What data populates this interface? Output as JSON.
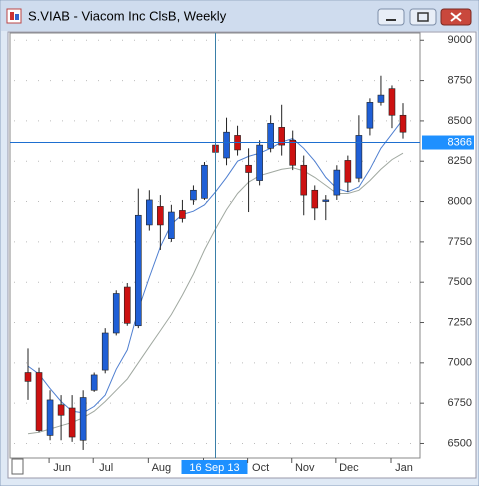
{
  "chart_data": {
    "type": "candlestick",
    "title": "S.VIAB - Viacom Inc ClsB, Weekly",
    "categories": [
      null,
      null,
      null,
      "Jun",
      null,
      null,
      null,
      "Jul",
      null,
      null,
      null,
      null,
      "Aug",
      null,
      null,
      null,
      null,
      "16 Sep 13",
      null,
      null,
      null,
      "Oct",
      null,
      null,
      null,
      "Nov",
      null,
      null,
      null,
      "Dec",
      null,
      null,
      null,
      null,
      "Jan"
    ],
    "open": [
      6940,
      6940,
      6550,
      6740,
      6720,
      6520,
      6830,
      6955,
      7185,
      7470,
      7230,
      7855,
      7970,
      7770,
      7945,
      8010,
      8020,
      8350,
      8270,
      8410,
      8225,
      8130,
      8330,
      8460,
      8380,
      8225,
      8070,
      8000,
      8040,
      8255,
      8145,
      8455,
      8615,
      8700,
      8535
    ],
    "high": [
      7090,
      6970,
      6830,
      6800,
      6800,
      6830,
      6940,
      7215,
      7450,
      7495,
      8080,
      8070,
      8040,
      7980,
      8010,
      8100,
      8245,
      8390,
      8520,
      8470,
      8330,
      8380,
      8535,
      8600,
      8440,
      8285,
      8100,
      8040,
      8225,
      8285,
      8535,
      8640,
      8780,
      8720,
      8610
    ],
    "low": [
      6770,
      6570,
      6520,
      6520,
      6510,
      6460,
      6820,
      6935,
      7170,
      7230,
      7215,
      7820,
      7700,
      7750,
      7870,
      7980,
      8010,
      8280,
      8225,
      8285,
      7935,
      8100,
      8305,
      8285,
      8195,
      7915,
      7885,
      7885,
      8010,
      8060,
      8120,
      8410,
      8595,
      8455,
      8390
    ],
    "close": [
      6885,
      6580,
      6770,
      6675,
      6540,
      6785,
      6925,
      7185,
      7430,
      7245,
      7915,
      8010,
      7855,
      7935,
      7895,
      8070,
      8225,
      8305,
      8430,
      8320,
      8180,
      8350,
      8485,
      8350,
      8225,
      8040,
      7960,
      8010,
      8195,
      8120,
      8410,
      8615,
      8660,
      8535,
      8430
    ],
    "up_color": "#1f5fd6",
    "down_color": "#cc1111",
    "moving_averages": [
      {
        "color": "#4f7fd0",
        "values": [
          6980,
          6930,
          6840,
          6760,
          6700,
          6690,
          6730,
          6800,
          6960,
          7080,
          7330,
          7530,
          7720,
          7860,
          7920,
          7940,
          7980,
          8060,
          8150,
          8250,
          8280,
          8300,
          8330,
          8370,
          8390,
          8330,
          8250,
          8150,
          8080,
          8060,
          8090,
          8200,
          8330,
          8420,
          8510
        ]
      },
      {
        "color": "#a0a8a0",
        "values": [
          6560,
          6570,
          6590,
          6610,
          6630,
          6660,
          6700,
          6760,
          6830,
          6900,
          7000,
          7100,
          7200,
          7300,
          7420,
          7550,
          7700,
          7830,
          7950,
          8050,
          8120,
          8160,
          8180,
          8200,
          8210,
          8190,
          8150,
          8100,
          8050,
          8050,
          8070,
          8130,
          8200,
          8260,
          8300
        ]
      }
    ],
    "ylim": [
      6410,
      9045
    ],
    "yticks": [
      6500,
      6750,
      7000,
      7250,
      7500,
      7750,
      8000,
      8250,
      8500,
      8750,
      9000
    ],
    "crosshair": {
      "index": 17,
      "value": 8366
    }
  }
}
